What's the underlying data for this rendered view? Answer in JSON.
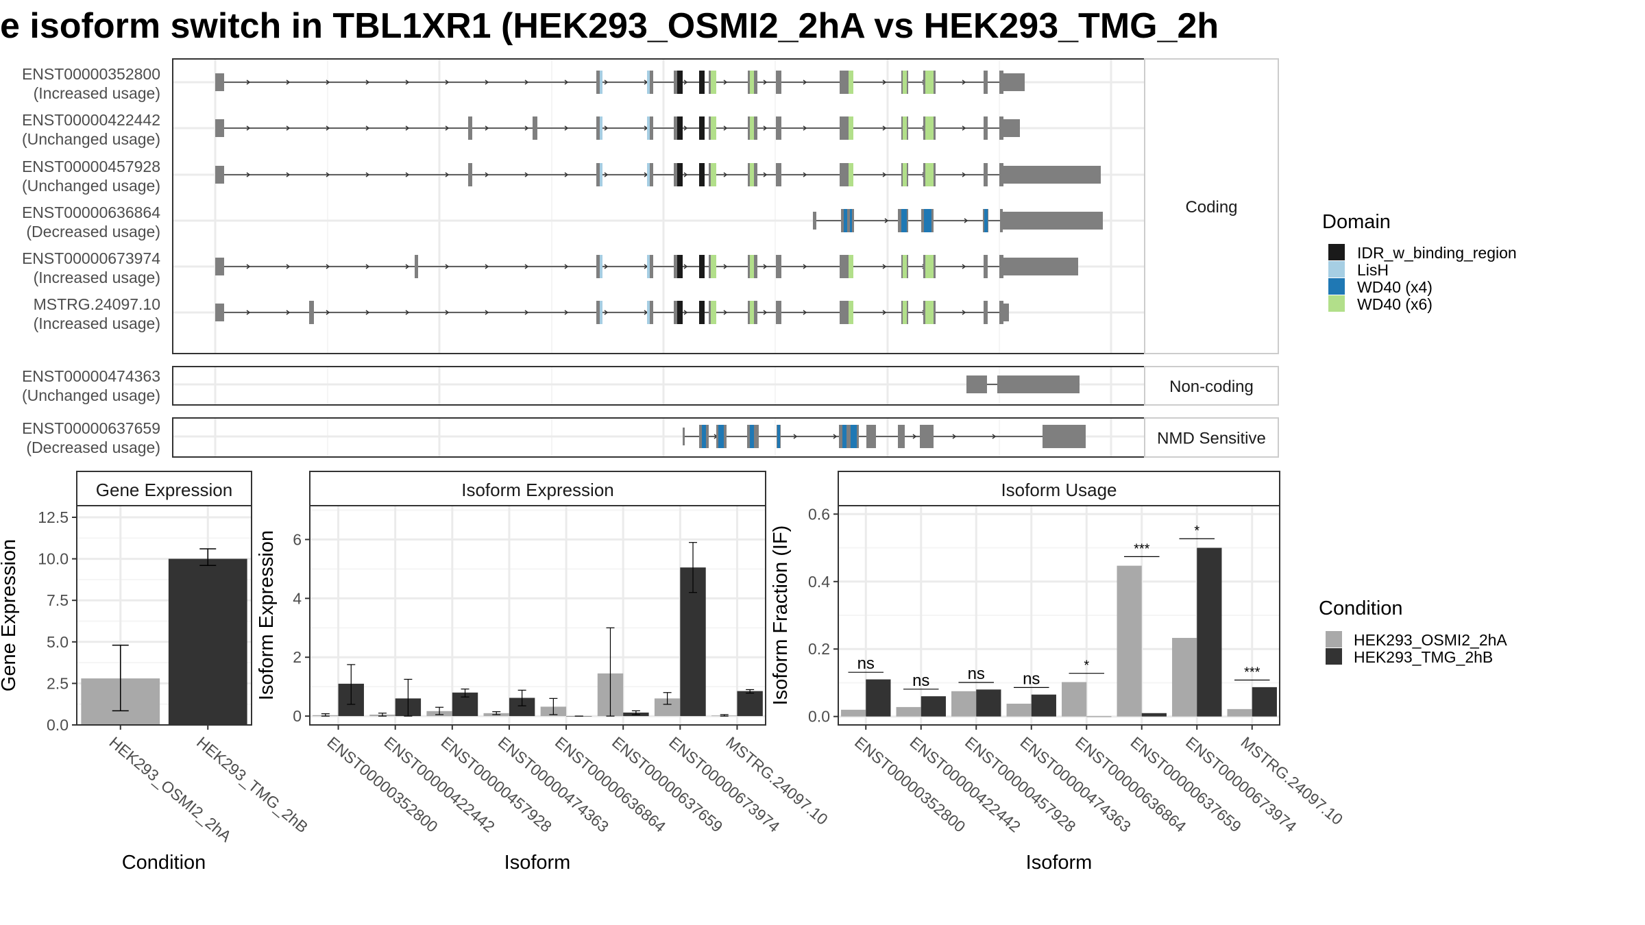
{
  "title": "e isoform switch in TBL1XR1 (HEK293_OSMI2_2hA vs HEK293_TMG_2h",
  "legend_domain": {
    "title": "Domain",
    "items": [
      {
        "label": "IDR_w_binding_region",
        "color": "#1a1a1a"
      },
      {
        "label": "LisH",
        "color": "#a6cee3"
      },
      {
        "label": "WD40 (x4)",
        "color": "#1f78b4"
      },
      {
        "label": "WD40 (x6)",
        "color": "#b2df8a"
      }
    ]
  },
  "legend_condition": {
    "title": "Condition",
    "items": [
      {
        "label": "HEK293_OSMI2_2hA",
        "color": "#a9a9a9"
      },
      {
        "label": "HEK293_TMG_2hB",
        "color": "#333333"
      }
    ]
  },
  "chart_data": [
    {
      "type": "gene-structure",
      "panels": [
        {
          "strip": "Coding",
          "isoforms": [
            {
              "id": "ENST00000352800",
              "status": "(Increased usage)"
            },
            {
              "id": "ENST00000422442",
              "status": "(Unchanged usage)"
            },
            {
              "id": "ENST00000457928",
              "status": "(Unchanged usage)"
            },
            {
              "id": "ENST00000636864",
              "status": "(Decreased usage)"
            },
            {
              "id": "ENST00000673974",
              "status": "(Increased usage)"
            },
            {
              "id": "MSTRG.24097.10",
              "status": "(Increased usage)"
            }
          ]
        },
        {
          "strip": "Non-coding",
          "isoforms": [
            {
              "id": "ENST00000474363",
              "status": "(Unchanged usage)"
            }
          ]
        },
        {
          "strip": "NMD Sensitive",
          "isoforms": [
            {
              "id": "ENST00000637659",
              "status": "(Decreased usage)"
            }
          ]
        }
      ]
    },
    {
      "type": "bar",
      "strip": "Gene Expression",
      "xlabel": "Condition",
      "ylabel": "Gene Expression",
      "ylim": [
        0,
        13.2
      ],
      "yticks": [
        "0.0",
        "2.5",
        "5.0",
        "7.5",
        "10.0",
        "12.5"
      ],
      "categories": [
        "HEK293_OSMI2_2hA",
        "HEK293_TMG_2hB"
      ],
      "values": [
        2.8,
        10.0
      ],
      "err_low": [
        0.85,
        9.6
      ],
      "err_high": [
        4.8,
        10.6
      ]
    },
    {
      "type": "bar",
      "strip": "Isoform Expression",
      "xlabel": "Isoform",
      "ylabel": "Isoform Expression",
      "ylim": [
        -0.3,
        7.15
      ],
      "yticks": [
        "0",
        "2",
        "4",
        "6"
      ],
      "categories": [
        "ENST00000352800",
        "ENST00000422442",
        "ENST00000457928",
        "ENST00000474363",
        "ENST00000636864",
        "ENST00000637659",
        "ENST00000673974",
        "MSTRG.24097.10"
      ],
      "series": [
        {
          "name": "HEK293_OSMI2_2hA",
          "values": [
            0.03,
            0.05,
            0.17,
            0.1,
            0.32,
            1.45,
            0.6,
            0.02
          ],
          "err_low": [
            0.0,
            0.0,
            0.05,
            0.05,
            0.05,
            0.0,
            0.4,
            0.0
          ],
          "err_high": [
            0.08,
            0.1,
            0.3,
            0.15,
            0.6,
            3.0,
            0.8,
            0.05
          ]
        },
        {
          "name": "HEK293_TMG_2hB",
          "values": [
            1.1,
            0.6,
            0.8,
            0.62,
            0.0,
            0.12,
            5.05,
            0.85
          ],
          "err_low": [
            0.4,
            0.0,
            0.65,
            0.35,
            0.0,
            0.05,
            4.2,
            0.78
          ],
          "err_high": [
            1.75,
            1.25,
            0.92,
            0.88,
            0.0,
            0.18,
            5.9,
            0.9
          ]
        }
      ]
    },
    {
      "type": "bar",
      "strip": "Isoform Usage",
      "xlabel": "Isoform",
      "ylabel": "Isoform Fraction (IF)",
      "ylim": [
        -0.025,
        0.625
      ],
      "yticks": [
        "0.0",
        "0.2",
        "0.4",
        "0.6"
      ],
      "categories": [
        "ENST00000352800",
        "ENST00000422442",
        "ENST00000457928",
        "ENST00000474363",
        "ENST00000636864",
        "ENST00000637659",
        "ENST00000673974",
        "MSTRG.24097.10"
      ],
      "series": [
        {
          "name": "HEK293_OSMI2_2hA",
          "values": [
            0.02,
            0.028,
            0.075,
            0.038,
            0.102,
            0.447,
            0.233,
            0.022
          ]
        },
        {
          "name": "HEK293_TMG_2hB",
          "values": [
            0.11,
            0.06,
            0.08,
            0.065,
            0.0,
            0.01,
            0.5,
            0.087
          ]
        }
      ],
      "significance": [
        "ns",
        "ns",
        "ns",
        "ns",
        "*",
        "***",
        "*",
        "***"
      ],
      "sig_y": [
        0.131,
        0.081,
        0.101,
        0.086,
        0.128,
        0.474,
        0.527,
        0.108
      ]
    }
  ]
}
